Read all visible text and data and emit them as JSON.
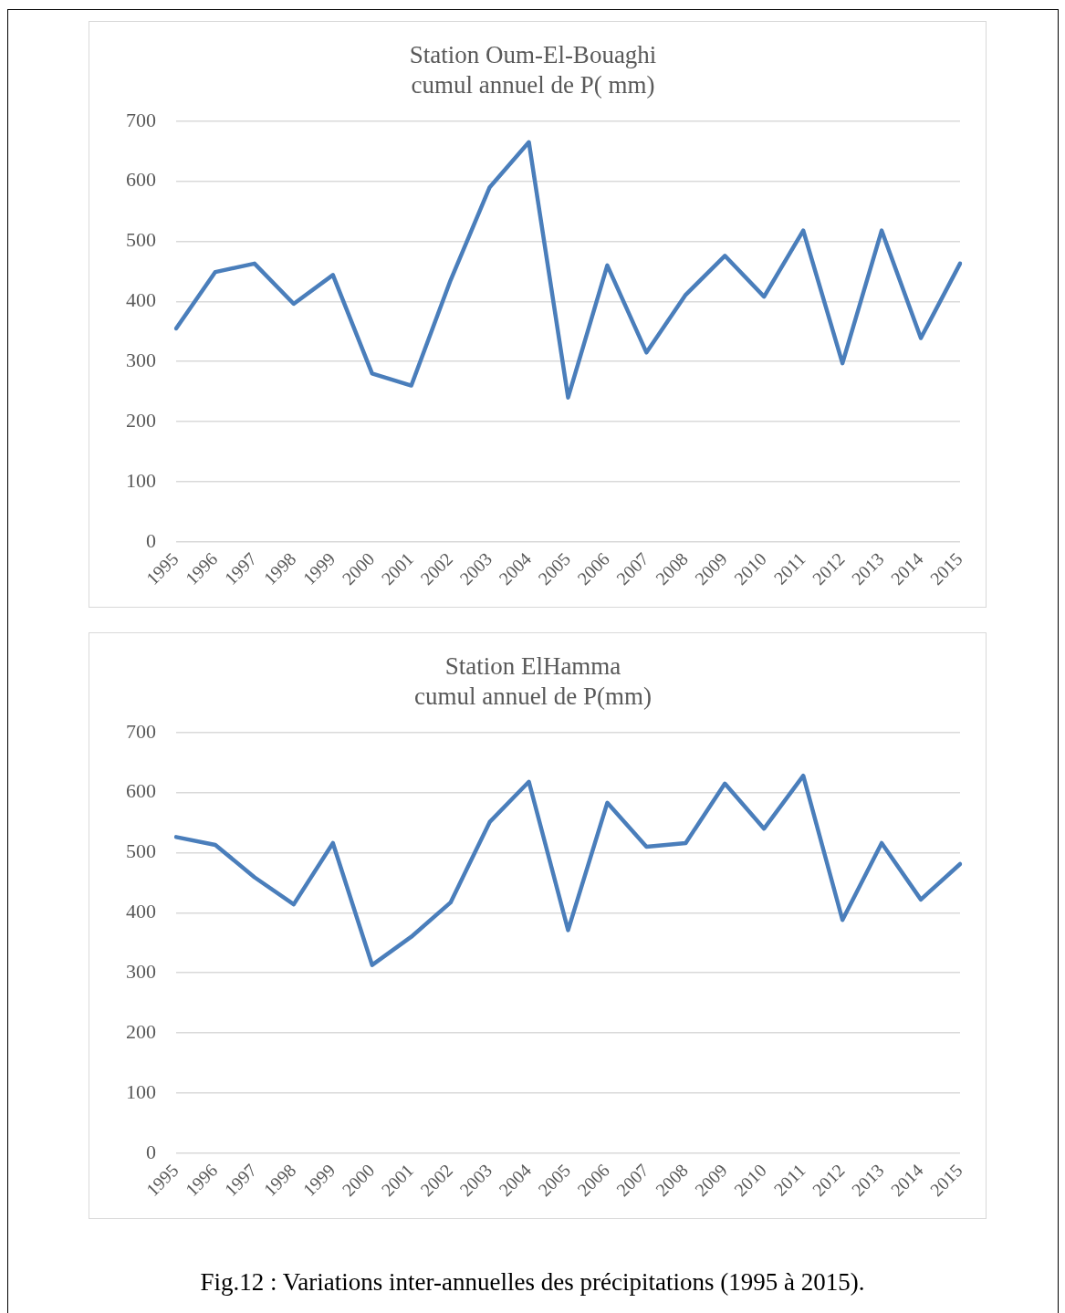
{
  "chart_data": [
    {
      "type": "line",
      "title": "Station Oum-El-Bouaghi\ncumul annuel de P( mm)",
      "categories": [
        "1995",
        "1996",
        "1997",
        "1998",
        "1999",
        "2000",
        "2001",
        "2002",
        "2003",
        "2004",
        "2005",
        "2006",
        "2007",
        "2008",
        "2009",
        "2010",
        "2011",
        "2012",
        "2013",
        "2014",
        "2015"
      ],
      "series": [
        {
          "color": "#4a7ebb",
          "values": [
            355,
            449,
            463,
            396,
            444,
            280,
            260,
            435,
            590,
            665,
            240,
            460,
            315,
            411,
            476,
            408,
            518,
            297,
            518,
            339,
            463
          ]
        }
      ],
      "ylim": [
        0,
        700
      ],
      "yticks": [
        0,
        100,
        200,
        300,
        400,
        500,
        600,
        700
      ],
      "grid": "y",
      "legend": false,
      "marker": "none",
      "line_style": "solid"
    },
    {
      "type": "line",
      "title": "Station ElHamma\ncumul annuel de P(mm)",
      "categories": [
        "1995",
        "1996",
        "1997",
        "1998",
        "1999",
        "2000",
        "2001",
        "2002",
        "2003",
        "2004",
        "2005",
        "2006",
        "2007",
        "2008",
        "2009",
        "2010",
        "2011",
        "2012",
        "2013",
        "2014",
        "2015"
      ],
      "series": [
        {
          "color": "#4a7ebb",
          "values": [
            526,
            513,
            459,
            414,
            516,
            313,
            360,
            417,
            551,
            618,
            371,
            583,
            510,
            516,
            615,
            540,
            628,
            388,
            516,
            422,
            481
          ]
        }
      ],
      "ylim": [
        0,
        700
      ],
      "yticks": [
        0,
        100,
        200,
        300,
        400,
        500,
        600,
        700
      ],
      "grid": "y",
      "legend": false,
      "marker": "none",
      "line_style": "solid",
      "annotations": [
        "Fig.12 : Variations  inter-annuelles  des  précipitations  (1995 à 2015)."
      ]
    }
  ]
}
